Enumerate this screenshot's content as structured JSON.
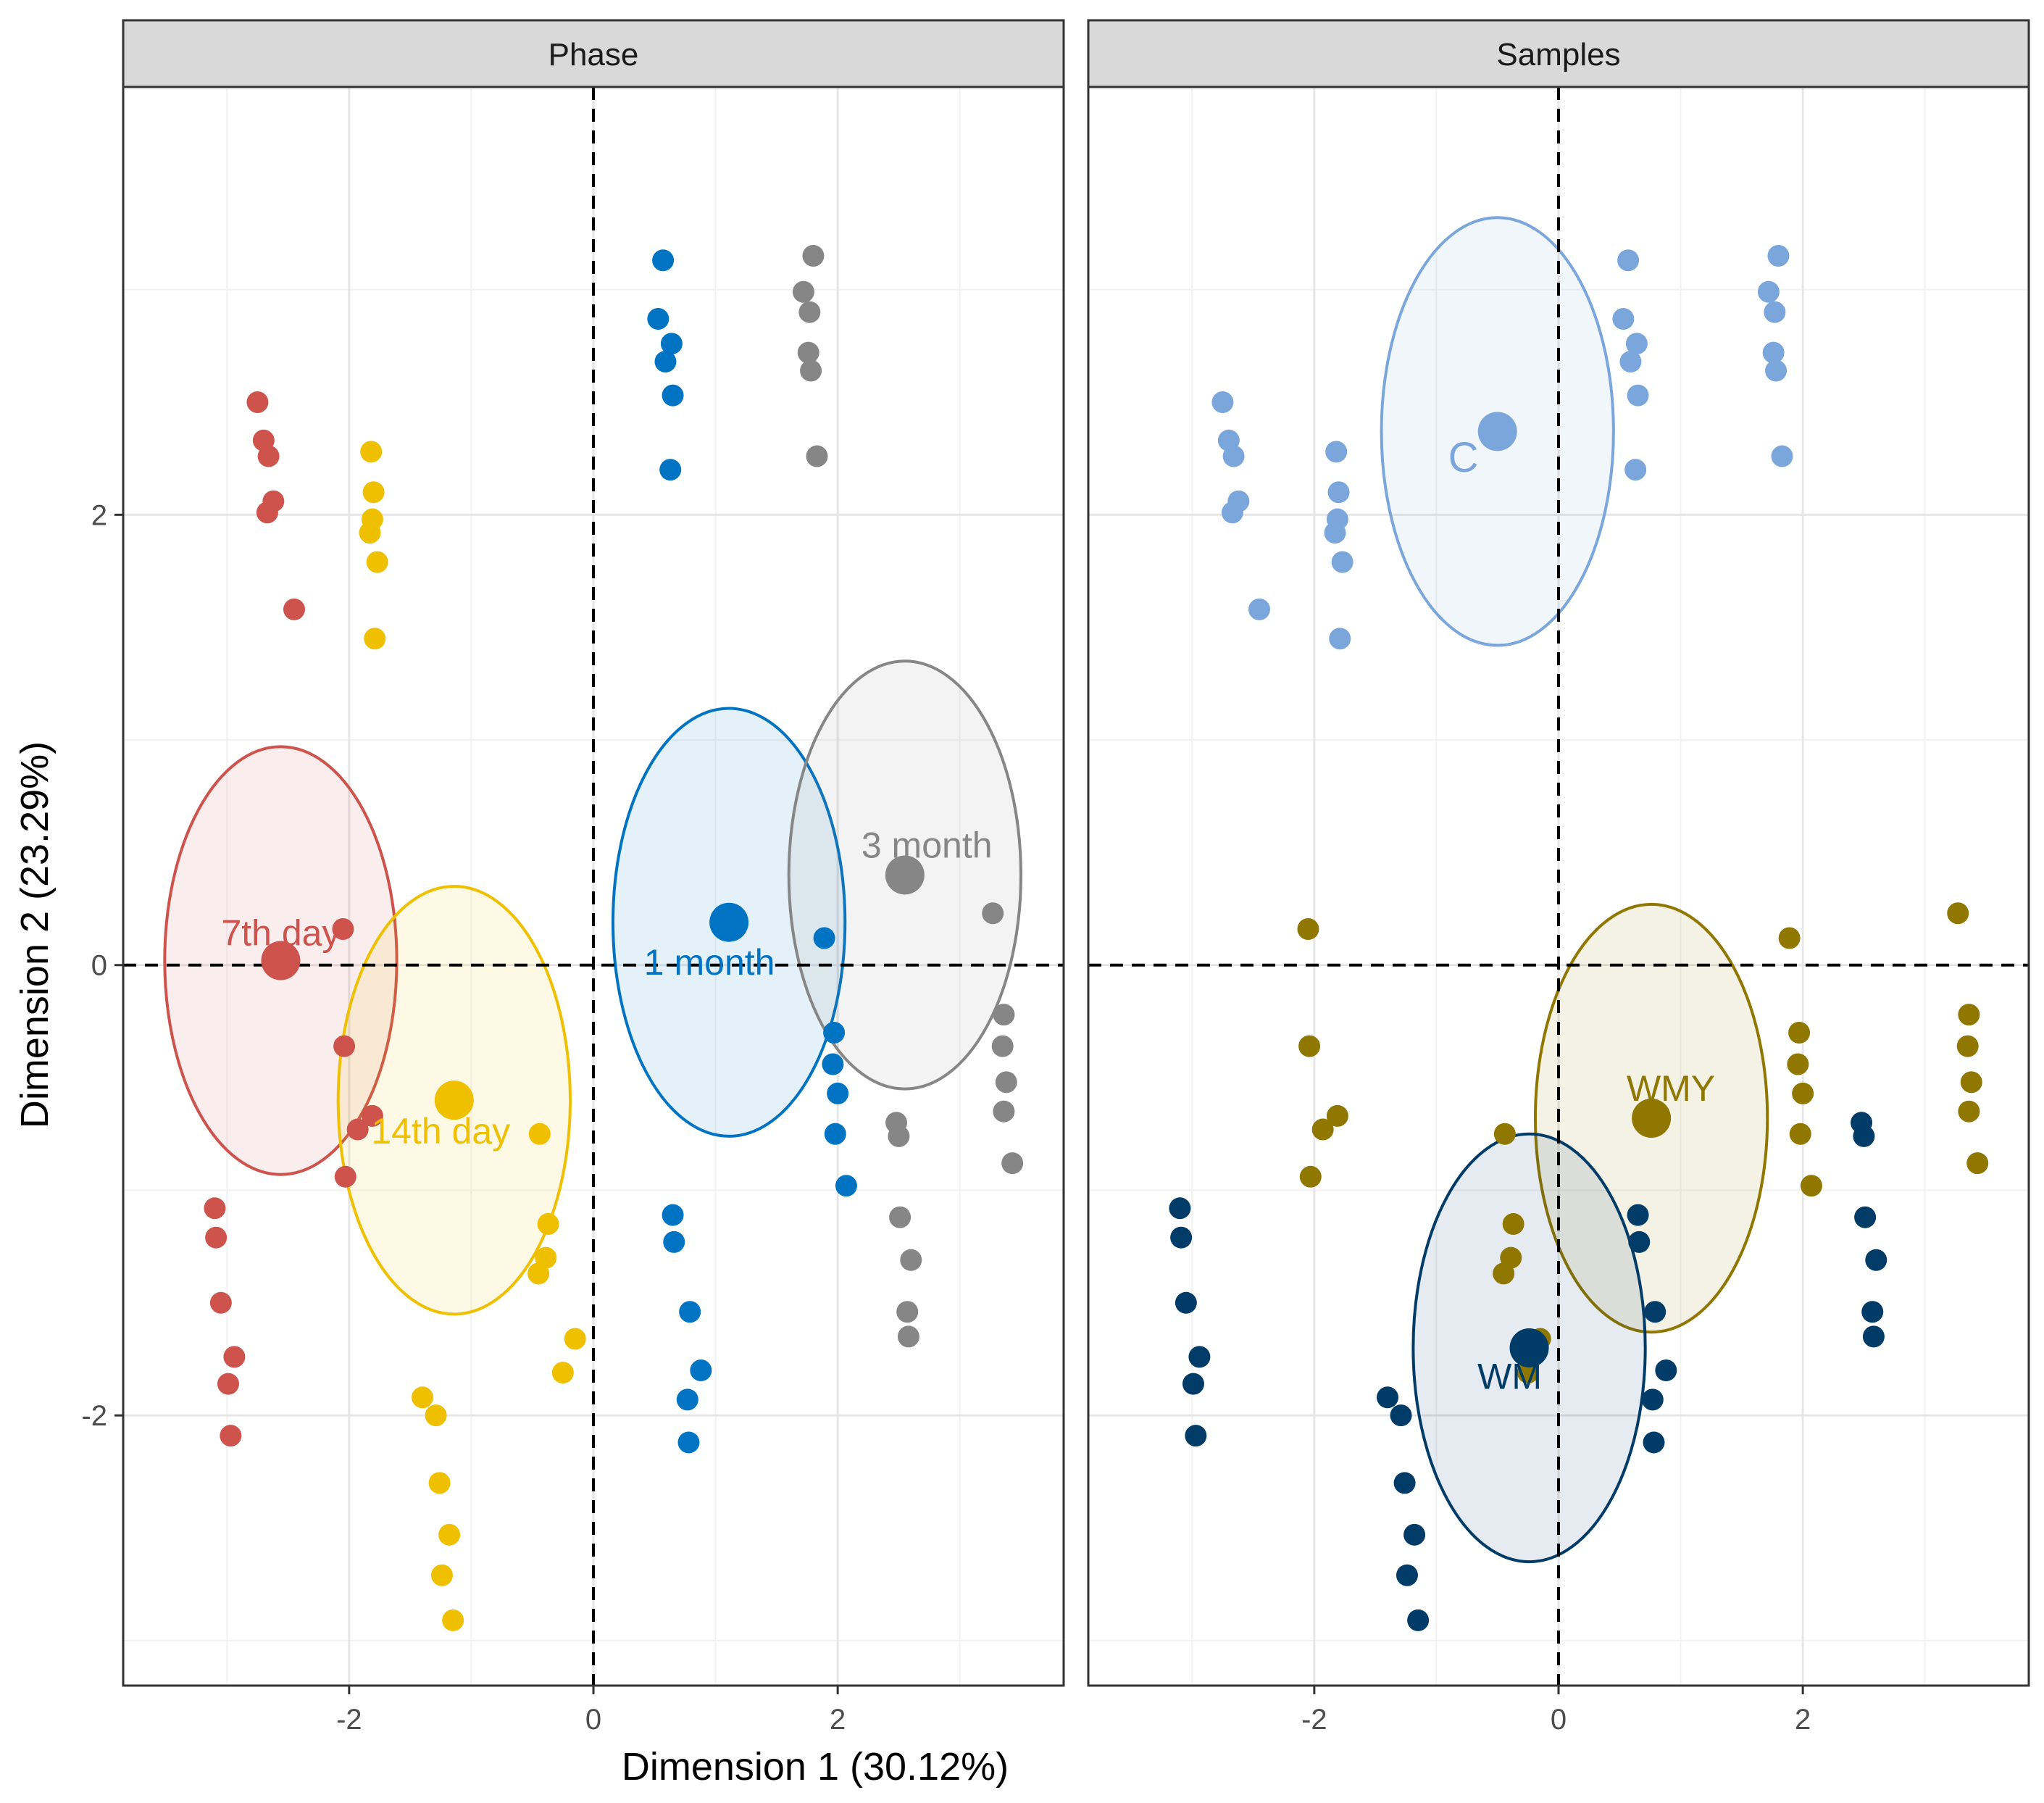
{
  "chart_data": {
    "type": "scatter",
    "x_axis_label": "Dimension 1 (30.12%)",
    "y_axis_label": "Dimension 2 (23.29%)",
    "xlim": [
      -3.85,
      3.85
    ],
    "ylim": [
      -3.2,
      3.9
    ],
    "x_ticks": [
      -2,
      0,
      2
    ],
    "y_ticks": [
      -2,
      0,
      2
    ],
    "tick_labels": {
      "x": [
        "-2",
        "0",
        "2"
      ],
      "y": [
        "-2",
        "0",
        "2"
      ]
    },
    "reference_lines": {
      "x": 0,
      "y": 0
    },
    "panels": [
      {
        "title": "Phase",
        "groups": [
          {
            "name": "7th day",
            "color": "#CD534C",
            "centroid": [
              -2.56,
              0.02
            ],
            "ellipse_radii": [
              0.95,
              0.95
            ],
            "label_pos": [
              -2.56,
              0.13
            ],
            "label_size": 50,
            "points": [
              [
                -2.75,
                2.5
              ],
              [
                -2.7,
                2.33
              ],
              [
                -2.66,
                2.26
              ],
              [
                -2.62,
                2.06
              ],
              [
                -2.67,
                2.01
              ],
              [
                -2.45,
                1.58
              ],
              [
                -2.05,
                0.16
              ],
              [
                -2.04,
                -0.36
              ],
              [
                -1.93,
                -0.73
              ],
              [
                -2.03,
                -0.94
              ],
              [
                -1.81,
                -0.67
              ],
              [
                -3.1,
                -1.08
              ],
              [
                -3.09,
                -1.21
              ],
              [
                -3.05,
                -1.5
              ],
              [
                -2.94,
                -1.74
              ],
              [
                -2.99,
                -1.86
              ],
              [
                -2.97,
                -2.09
              ]
            ]
          },
          {
            "name": "14th day",
            "color": "#EFC000",
            "centroid": [
              -1.14,
              -0.6
            ],
            "ellipse_radii": [
              0.95,
              0.95
            ],
            "label_pos": [
              -1.25,
              -0.75
            ],
            "label_size": 50,
            "points": [
              [
                -1.82,
                2.28
              ],
              [
                -1.8,
                2.1
              ],
              [
                -1.81,
                1.98
              ],
              [
                -1.83,
                1.92
              ],
              [
                -1.77,
                1.79
              ],
              [
                -1.79,
                1.45
              ],
              [
                -0.44,
                -0.75
              ],
              [
                -0.37,
                -1.15
              ],
              [
                -0.39,
                -1.3
              ],
              [
                -0.45,
                -1.37
              ],
              [
                -0.15,
                -1.66
              ],
              [
                -0.25,
                -1.81
              ],
              [
                -1.4,
                -1.92
              ],
              [
                -1.29,
                -2.0
              ],
              [
                -1.26,
                -2.3
              ],
              [
                -1.18,
                -2.53
              ],
              [
                -1.24,
                -2.71
              ],
              [
                -1.15,
                -2.91
              ]
            ]
          },
          {
            "name": "1 month",
            "color": "#0073C2",
            "centroid": [
              1.11,
              0.19
            ],
            "ellipse_radii": [
              0.95,
              0.95
            ],
            "label_pos": [
              0.95,
              0.0
            ],
            "label_size": 50,
            "points": [
              [
                0.57,
                3.13
              ],
              [
                0.53,
                2.87
              ],
              [
                0.64,
                2.76
              ],
              [
                0.59,
                2.68
              ],
              [
                0.65,
                2.53
              ],
              [
                0.63,
                2.2
              ],
              [
                1.89,
                0.12
              ],
              [
                1.97,
                -0.3
              ],
              [
                1.96,
                -0.44
              ],
              [
                2.0,
                -0.57
              ],
              [
                1.98,
                -0.75
              ],
              [
                2.07,
                -0.98
              ],
              [
                0.65,
                -1.11
              ],
              [
                0.66,
                -1.23
              ],
              [
                0.79,
                -1.54
              ],
              [
                0.88,
                -1.8
              ],
              [
                0.77,
                -1.93
              ],
              [
                0.78,
                -2.12
              ]
            ]
          },
          {
            "name": "3 month",
            "color": "#868686",
            "centroid": [
              2.55,
              0.4
            ],
            "ellipse_radii": [
              0.95,
              0.95
            ],
            "label_pos": [
              2.73,
              0.52
            ],
            "label_size": 50,
            "points": [
              [
                1.8,
                3.15
              ],
              [
                1.72,
                2.99
              ],
              [
                1.77,
                2.9
              ],
              [
                1.76,
                2.72
              ],
              [
                1.78,
                2.64
              ],
              [
                1.83,
                2.26
              ],
              [
                3.27,
                0.23
              ],
              [
                3.36,
                -0.22
              ],
              [
                3.35,
                -0.36
              ],
              [
                3.38,
                -0.52
              ],
              [
                3.36,
                -0.65
              ],
              [
                3.43,
                -0.88
              ],
              [
                2.48,
                -0.7
              ],
              [
                2.5,
                -0.76
              ],
              [
                2.51,
                -1.12
              ],
              [
                2.6,
                -1.31
              ],
              [
                2.57,
                -1.54
              ],
              [
                2.58,
                -1.65
              ]
            ]
          }
        ]
      },
      {
        "title": "Samples",
        "groups": [
          {
            "name": "C",
            "color": "#7AA6DC",
            "centroid": [
              -0.5,
              2.37
            ],
            "ellipse_radii": [
              0.95,
              0.95
            ],
            "label_pos": [
              -0.78,
              2.24
            ],
            "label_size": 58,
            "points": [
              [
                -2.75,
                2.5
              ],
              [
                -2.7,
                2.33
              ],
              [
                -2.66,
                2.26
              ],
              [
                -2.62,
                2.06
              ],
              [
                -2.67,
                2.01
              ],
              [
                -2.45,
                1.58
              ],
              [
                -1.82,
                2.28
              ],
              [
                -1.8,
                2.1
              ],
              [
                -1.81,
                1.98
              ],
              [
                -1.83,
                1.92
              ],
              [
                -1.77,
                1.79
              ],
              [
                -1.79,
                1.45
              ],
              [
                0.57,
                3.13
              ],
              [
                0.53,
                2.87
              ],
              [
                0.64,
                2.76
              ],
              [
                0.59,
                2.68
              ],
              [
                0.65,
                2.53
              ],
              [
                0.63,
                2.2
              ],
              [
                1.8,
                3.15
              ],
              [
                1.72,
                2.99
              ],
              [
                1.77,
                2.9
              ],
              [
                1.76,
                2.72
              ],
              [
                1.78,
                2.64
              ],
              [
                1.83,
                2.26
              ]
            ]
          },
          {
            "name": "WMY",
            "color": "#8F7700",
            "centroid": [
              0.76,
              -0.68
            ],
            "ellipse_radii": [
              0.95,
              0.95
            ],
            "label_pos": [
              0.92,
              -0.56
            ],
            "label_size": 50,
            "points": [
              [
                -2.05,
                0.16
              ],
              [
                -2.04,
                -0.36
              ],
              [
                -1.93,
                -0.73
              ],
              [
                -2.03,
                -0.94
              ],
              [
                -1.81,
                -0.67
              ],
              [
                -0.44,
                -0.75
              ],
              [
                -0.37,
                -1.15
              ],
              [
                -0.39,
                -1.3
              ],
              [
                -0.45,
                -1.37
              ],
              [
                -0.15,
                -1.66
              ],
              [
                -0.25,
                -1.81
              ],
              [
                1.89,
                0.12
              ],
              [
                1.97,
                -0.3
              ],
              [
                1.96,
                -0.44
              ],
              [
                2.0,
                -0.57
              ],
              [
                1.98,
                -0.75
              ],
              [
                2.07,
                -0.98
              ],
              [
                3.27,
                0.23
              ],
              [
                3.36,
                -0.22
              ],
              [
                3.35,
                -0.36
              ],
              [
                3.38,
                -0.52
              ],
              [
                3.36,
                -0.65
              ],
              [
                3.43,
                -0.88
              ]
            ]
          },
          {
            "name": "WM",
            "color": "#003C67",
            "centroid": [
              -0.24,
              -1.7
            ],
            "ellipse_radii": [
              0.95,
              0.95
            ],
            "label_pos": [
              -0.4,
              -1.84
            ],
            "label_size": 50,
            "points": [
              [
                -3.1,
                -1.08
              ],
              [
                -3.09,
                -1.21
              ],
              [
                -3.05,
                -1.5
              ],
              [
                -2.94,
                -1.74
              ],
              [
                -2.99,
                -1.86
              ],
              [
                -2.97,
                -2.09
              ],
              [
                -1.4,
                -1.92
              ],
              [
                -1.29,
                -2.0
              ],
              [
                -1.26,
                -2.3
              ],
              [
                -1.18,
                -2.53
              ],
              [
                -1.24,
                -2.71
              ],
              [
                -1.15,
                -2.91
              ],
              [
                0.65,
                -1.11
              ],
              [
                0.66,
                -1.23
              ],
              [
                0.79,
                -1.54
              ],
              [
                0.88,
                -1.8
              ],
              [
                0.77,
                -1.93
              ],
              [
                0.78,
                -2.12
              ],
              [
                2.48,
                -0.7
              ],
              [
                2.5,
                -0.76
              ],
              [
                2.51,
                -1.12
              ],
              [
                2.6,
                -1.31
              ],
              [
                2.57,
                -1.54
              ],
              [
                2.58,
                -1.65
              ]
            ]
          }
        ]
      }
    ]
  }
}
